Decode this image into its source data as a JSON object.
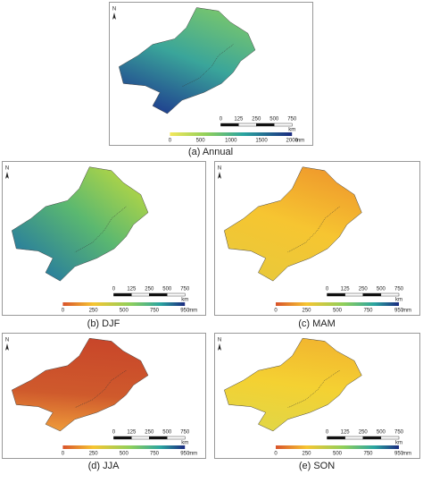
{
  "panels": [
    {
      "caption": "(a) Annual",
      "north": "N",
      "scale": [
        "0",
        "125",
        "250",
        "500",
        "750"
      ],
      "scale_unit": "km",
      "colorbar": [
        "0",
        "500",
        "1000",
        "1500",
        "2000"
      ],
      "colorbar_unit": "mm"
    },
    {
      "caption": "(b) DJF",
      "north": "N",
      "scale": [
        "0",
        "125",
        "250",
        "500",
        "750"
      ],
      "scale_unit": "km",
      "colorbar": [
        "0",
        "250",
        "500",
        "750",
        "950"
      ],
      "colorbar_unit": "mm"
    },
    {
      "caption": "(c) MAM",
      "north": "N",
      "scale": [
        "0",
        "125",
        "250",
        "500",
        "750"
      ],
      "scale_unit": "km",
      "colorbar": [
        "0",
        "250",
        "500",
        "750",
        "950"
      ],
      "colorbar_unit": "mm"
    },
    {
      "caption": "(d) JJA",
      "north": "N",
      "scale": [
        "0",
        "125",
        "250",
        "500",
        "750"
      ],
      "scale_unit": "km",
      "colorbar": [
        "0",
        "250",
        "500",
        "750",
        "950"
      ],
      "colorbar_unit": "mm"
    },
    {
      "caption": "(e) SON",
      "north": "N",
      "scale": [
        "0",
        "125",
        "250",
        "500",
        "750"
      ],
      "scale_unit": "km",
      "colorbar": [
        "0",
        "250",
        "500",
        "750",
        "950"
      ],
      "colorbar_unit": "mm"
    }
  ]
}
